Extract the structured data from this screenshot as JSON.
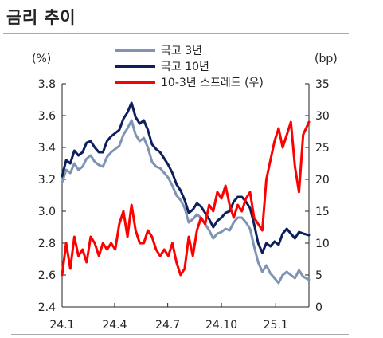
{
  "header": {
    "title": "금리 추이"
  },
  "chart_data": {
    "type": "line",
    "left_unit": "(%)",
    "right_unit": "(bp)",
    "left_axis": {
      "ylim": [
        2.4,
        3.8
      ],
      "ticks": [
        "2.4",
        "2.6",
        "2.8",
        "3.0",
        "3.2",
        "3.4",
        "3.6",
        "3.8"
      ]
    },
    "right_axis": {
      "ylim": [
        0,
        35
      ],
      "ticks": [
        "0",
        "5",
        "10",
        "15",
        "20",
        "25",
        "30",
        "35"
      ]
    },
    "x_ticks": [
      {
        "label": "24.1",
        "date": "2024-01-02"
      },
      {
        "label": "24.4",
        "date": "2024-04-01"
      },
      {
        "label": "24.7",
        "date": "2024-07-01"
      },
      {
        "label": "24.10",
        "date": "2024-10-01"
      },
      {
        "label": "25.1",
        "date": "2025-01-02"
      }
    ],
    "x_range": [
      "2024-01-02",
      "2025-02-28"
    ],
    "legend_position": "top-center",
    "series": [
      {
        "name": "국고 3년",
        "axis": "left",
        "color": "#7f93b3",
        "points": [
          [
            "2024-01-02",
            3.18
          ],
          [
            "2024-01-09",
            3.26
          ],
          [
            "2024-01-16",
            3.24
          ],
          [
            "2024-01-23",
            3.3
          ],
          [
            "2024-01-30",
            3.26
          ],
          [
            "2024-02-06",
            3.28
          ],
          [
            "2024-02-13",
            3.33
          ],
          [
            "2024-02-20",
            3.35
          ],
          [
            "2024-02-27",
            3.31
          ],
          [
            "2024-03-05",
            3.29
          ],
          [
            "2024-03-12",
            3.28
          ],
          [
            "2024-03-19",
            3.34
          ],
          [
            "2024-03-26",
            3.37
          ],
          [
            "2024-04-02",
            3.39
          ],
          [
            "2024-04-09",
            3.41
          ],
          [
            "2024-04-16",
            3.48
          ],
          [
            "2024-04-23",
            3.52
          ],
          [
            "2024-04-30",
            3.57
          ],
          [
            "2024-05-07",
            3.48
          ],
          [
            "2024-05-14",
            3.44
          ],
          [
            "2024-05-21",
            3.46
          ],
          [
            "2024-05-28",
            3.4
          ],
          [
            "2024-06-04",
            3.31
          ],
          [
            "2024-06-11",
            3.28
          ],
          [
            "2024-06-18",
            3.27
          ],
          [
            "2024-06-25",
            3.24
          ],
          [
            "2024-07-02",
            3.21
          ],
          [
            "2024-07-09",
            3.16
          ],
          [
            "2024-07-16",
            3.1
          ],
          [
            "2024-07-23",
            3.07
          ],
          [
            "2024-07-30",
            3.02
          ],
          [
            "2024-08-06",
            2.93
          ],
          [
            "2024-08-13",
            2.95
          ],
          [
            "2024-08-20",
            2.98
          ],
          [
            "2024-08-27",
            2.96
          ],
          [
            "2024-09-03",
            2.92
          ],
          [
            "2024-09-10",
            2.88
          ],
          [
            "2024-09-17",
            2.83
          ],
          [
            "2024-09-24",
            2.86
          ],
          [
            "2024-10-01",
            2.87
          ],
          [
            "2024-10-08",
            2.89
          ],
          [
            "2024-10-15",
            2.88
          ],
          [
            "2024-10-22",
            2.93
          ],
          [
            "2024-10-29",
            2.96
          ],
          [
            "2024-11-05",
            2.96
          ],
          [
            "2024-11-12",
            2.93
          ],
          [
            "2024-11-19",
            2.89
          ],
          [
            "2024-11-26",
            2.78
          ],
          [
            "2024-12-03",
            2.68
          ],
          [
            "2024-12-10",
            2.62
          ],
          [
            "2024-12-17",
            2.66
          ],
          [
            "2024-12-24",
            2.61
          ],
          [
            "2024-12-31",
            2.58
          ],
          [
            "2025-01-07",
            2.55
          ],
          [
            "2025-01-14",
            2.6
          ],
          [
            "2025-01-21",
            2.62
          ],
          [
            "2025-01-28",
            2.6
          ],
          [
            "2025-02-04",
            2.58
          ],
          [
            "2025-02-11",
            2.63
          ],
          [
            "2025-02-18",
            2.59
          ],
          [
            "2025-02-28",
            2.57
          ]
        ]
      },
      {
        "name": "국고 10년",
        "axis": "left",
        "color": "#0d1f5c",
        "points": [
          [
            "2024-01-02",
            3.22
          ],
          [
            "2024-01-09",
            3.32
          ],
          [
            "2024-01-16",
            3.3
          ],
          [
            "2024-01-23",
            3.38
          ],
          [
            "2024-01-30",
            3.35
          ],
          [
            "2024-02-06",
            3.37
          ],
          [
            "2024-02-13",
            3.43
          ],
          [
            "2024-02-20",
            3.44
          ],
          [
            "2024-02-27",
            3.4
          ],
          [
            "2024-03-05",
            3.37
          ],
          [
            "2024-03-12",
            3.37
          ],
          [
            "2024-03-19",
            3.44
          ],
          [
            "2024-03-26",
            3.47
          ],
          [
            "2024-04-02",
            3.49
          ],
          [
            "2024-04-09",
            3.51
          ],
          [
            "2024-04-16",
            3.58
          ],
          [
            "2024-04-23",
            3.62
          ],
          [
            "2024-04-30",
            3.68
          ],
          [
            "2024-05-07",
            3.59
          ],
          [
            "2024-05-14",
            3.55
          ],
          [
            "2024-05-21",
            3.57
          ],
          [
            "2024-05-28",
            3.51
          ],
          [
            "2024-06-04",
            3.42
          ],
          [
            "2024-06-11",
            3.39
          ],
          [
            "2024-06-18",
            3.37
          ],
          [
            "2024-06-25",
            3.33
          ],
          [
            "2024-07-02",
            3.29
          ],
          [
            "2024-07-09",
            3.24
          ],
          [
            "2024-07-16",
            3.17
          ],
          [
            "2024-07-23",
            3.13
          ],
          [
            "2024-07-30",
            3.07
          ],
          [
            "2024-08-06",
            2.99
          ],
          [
            "2024-08-13",
            3.01
          ],
          [
            "2024-08-20",
            3.05
          ],
          [
            "2024-08-27",
            3.03
          ],
          [
            "2024-09-03",
            2.99
          ],
          [
            "2024-09-10",
            2.95
          ],
          [
            "2024-09-17",
            2.9
          ],
          [
            "2024-09-24",
            2.94
          ],
          [
            "2024-10-01",
            2.96
          ],
          [
            "2024-10-08",
            2.99
          ],
          [
            "2024-10-15",
            3.0
          ],
          [
            "2024-10-22",
            3.06
          ],
          [
            "2024-10-29",
            3.09
          ],
          [
            "2024-11-05",
            3.09
          ],
          [
            "2024-11-12",
            3.06
          ],
          [
            "2024-11-19",
            3.02
          ],
          [
            "2024-11-26",
            2.92
          ],
          [
            "2024-12-03",
            2.8
          ],
          [
            "2024-12-10",
            2.74
          ],
          [
            "2024-12-17",
            2.8
          ],
          [
            "2024-12-24",
            2.78
          ],
          [
            "2024-12-31",
            2.81
          ],
          [
            "2025-01-07",
            2.79
          ],
          [
            "2025-01-14",
            2.86
          ],
          [
            "2025-01-21",
            2.89
          ],
          [
            "2025-01-28",
            2.86
          ],
          [
            "2025-02-04",
            2.83
          ],
          [
            "2025-02-11",
            2.87
          ],
          [
            "2025-02-18",
            2.86
          ],
          [
            "2025-02-28",
            2.85
          ]
        ]
      },
      {
        "name": "10-3년 스프레드 (우)",
        "axis": "right",
        "color": "#ff0000",
        "points": [
          [
            "2024-01-02",
            5
          ],
          [
            "2024-01-09",
            10
          ],
          [
            "2024-01-16",
            6
          ],
          [
            "2024-01-23",
            11
          ],
          [
            "2024-01-30",
            8
          ],
          [
            "2024-02-06",
            9
          ],
          [
            "2024-02-13",
            7
          ],
          [
            "2024-02-20",
            11
          ],
          [
            "2024-02-27",
            10
          ],
          [
            "2024-03-05",
            8
          ],
          [
            "2024-03-12",
            10
          ],
          [
            "2024-03-19",
            9
          ],
          [
            "2024-03-26",
            10
          ],
          [
            "2024-04-02",
            9
          ],
          [
            "2024-04-09",
            13
          ],
          [
            "2024-04-16",
            15
          ],
          [
            "2024-04-23",
            11
          ],
          [
            "2024-04-30",
            16
          ],
          [
            "2024-05-07",
            12
          ],
          [
            "2024-05-14",
            10
          ],
          [
            "2024-05-21",
            10
          ],
          [
            "2024-05-28",
            12
          ],
          [
            "2024-06-04",
            11
          ],
          [
            "2024-06-11",
            9
          ],
          [
            "2024-06-18",
            8
          ],
          [
            "2024-06-25",
            9
          ],
          [
            "2024-07-02",
            8
          ],
          [
            "2024-07-09",
            10
          ],
          [
            "2024-07-16",
            7
          ],
          [
            "2024-07-23",
            5
          ],
          [
            "2024-07-30",
            6
          ],
          [
            "2024-08-06",
            11
          ],
          [
            "2024-08-13",
            8
          ],
          [
            "2024-08-20",
            12
          ],
          [
            "2024-08-27",
            14
          ],
          [
            "2024-09-03",
            13
          ],
          [
            "2024-09-10",
            16
          ],
          [
            "2024-09-17",
            15
          ],
          [
            "2024-09-24",
            18
          ],
          [
            "2024-10-01",
            17
          ],
          [
            "2024-10-08",
            19
          ],
          [
            "2024-10-15",
            16
          ],
          [
            "2024-10-22",
            14
          ],
          [
            "2024-10-29",
            16
          ],
          [
            "2024-11-05",
            15
          ],
          [
            "2024-11-12",
            17
          ],
          [
            "2024-11-19",
            18
          ],
          [
            "2024-11-26",
            14
          ],
          [
            "2024-12-03",
            13
          ],
          [
            "2024-12-10",
            12
          ],
          [
            "2024-12-17",
            20
          ],
          [
            "2024-12-24",
            23
          ],
          [
            "2024-12-31",
            26
          ],
          [
            "2025-01-07",
            28
          ],
          [
            "2025-01-14",
            25
          ],
          [
            "2025-01-21",
            27
          ],
          [
            "2025-01-28",
            29
          ],
          [
            "2025-02-04",
            22
          ],
          [
            "2025-02-11",
            18
          ],
          [
            "2025-02-18",
            27
          ],
          [
            "2025-02-28",
            29
          ]
        ]
      }
    ]
  }
}
